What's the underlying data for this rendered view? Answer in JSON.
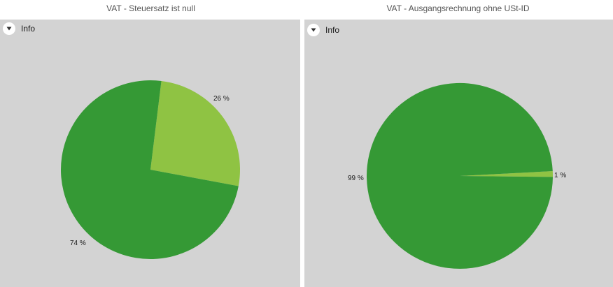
{
  "info_label": "Info",
  "colors": {
    "dark_green": "#359935",
    "light_green": "#8fc343",
    "panel_bg": "#d3d3d3"
  },
  "chart_data": [
    {
      "type": "pie",
      "title": "VAT - Steuersatz ist null",
      "slices": [
        {
          "value": 26,
          "label": "26 %",
          "color": "#8fc343"
        },
        {
          "value": 74,
          "label": "74 %",
          "color": "#359935"
        }
      ]
    },
    {
      "type": "pie",
      "title": "VAT - Ausgangsrechnung ohne USt-ID",
      "slices": [
        {
          "value": 1,
          "label": "1 %",
          "color": "#8fc343"
        },
        {
          "value": 99,
          "label": "99 %",
          "color": "#359935"
        }
      ]
    }
  ]
}
